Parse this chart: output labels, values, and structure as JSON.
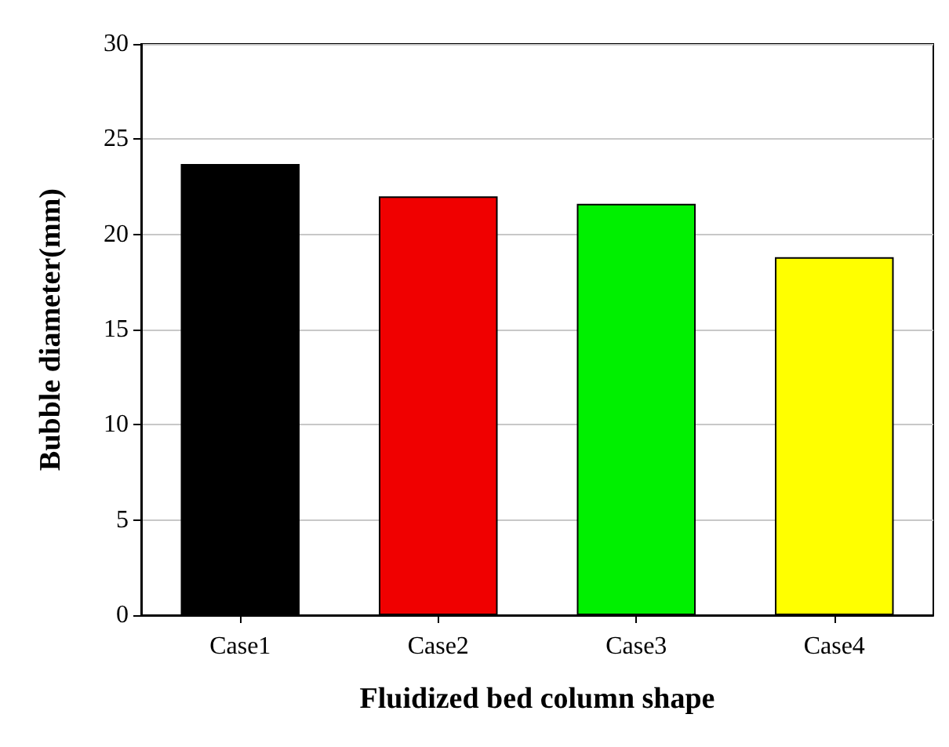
{
  "chart_data": {
    "type": "bar",
    "xlabel": "Fluidized bed column shape",
    "ylabel": "Bubble diameter(mm)",
    "categories": [
      "Case1",
      "Case2",
      "Case3",
      "Case4"
    ],
    "values": [
      23.7,
      22.0,
      21.6,
      18.8
    ],
    "colors": [
      "#000000",
      "#f00000",
      "#00f000",
      "#ffff00"
    ],
    "ylim": [
      0,
      30
    ],
    "yticks": [
      0,
      5,
      10,
      15,
      20,
      25,
      30
    ],
    "grid": "y"
  }
}
